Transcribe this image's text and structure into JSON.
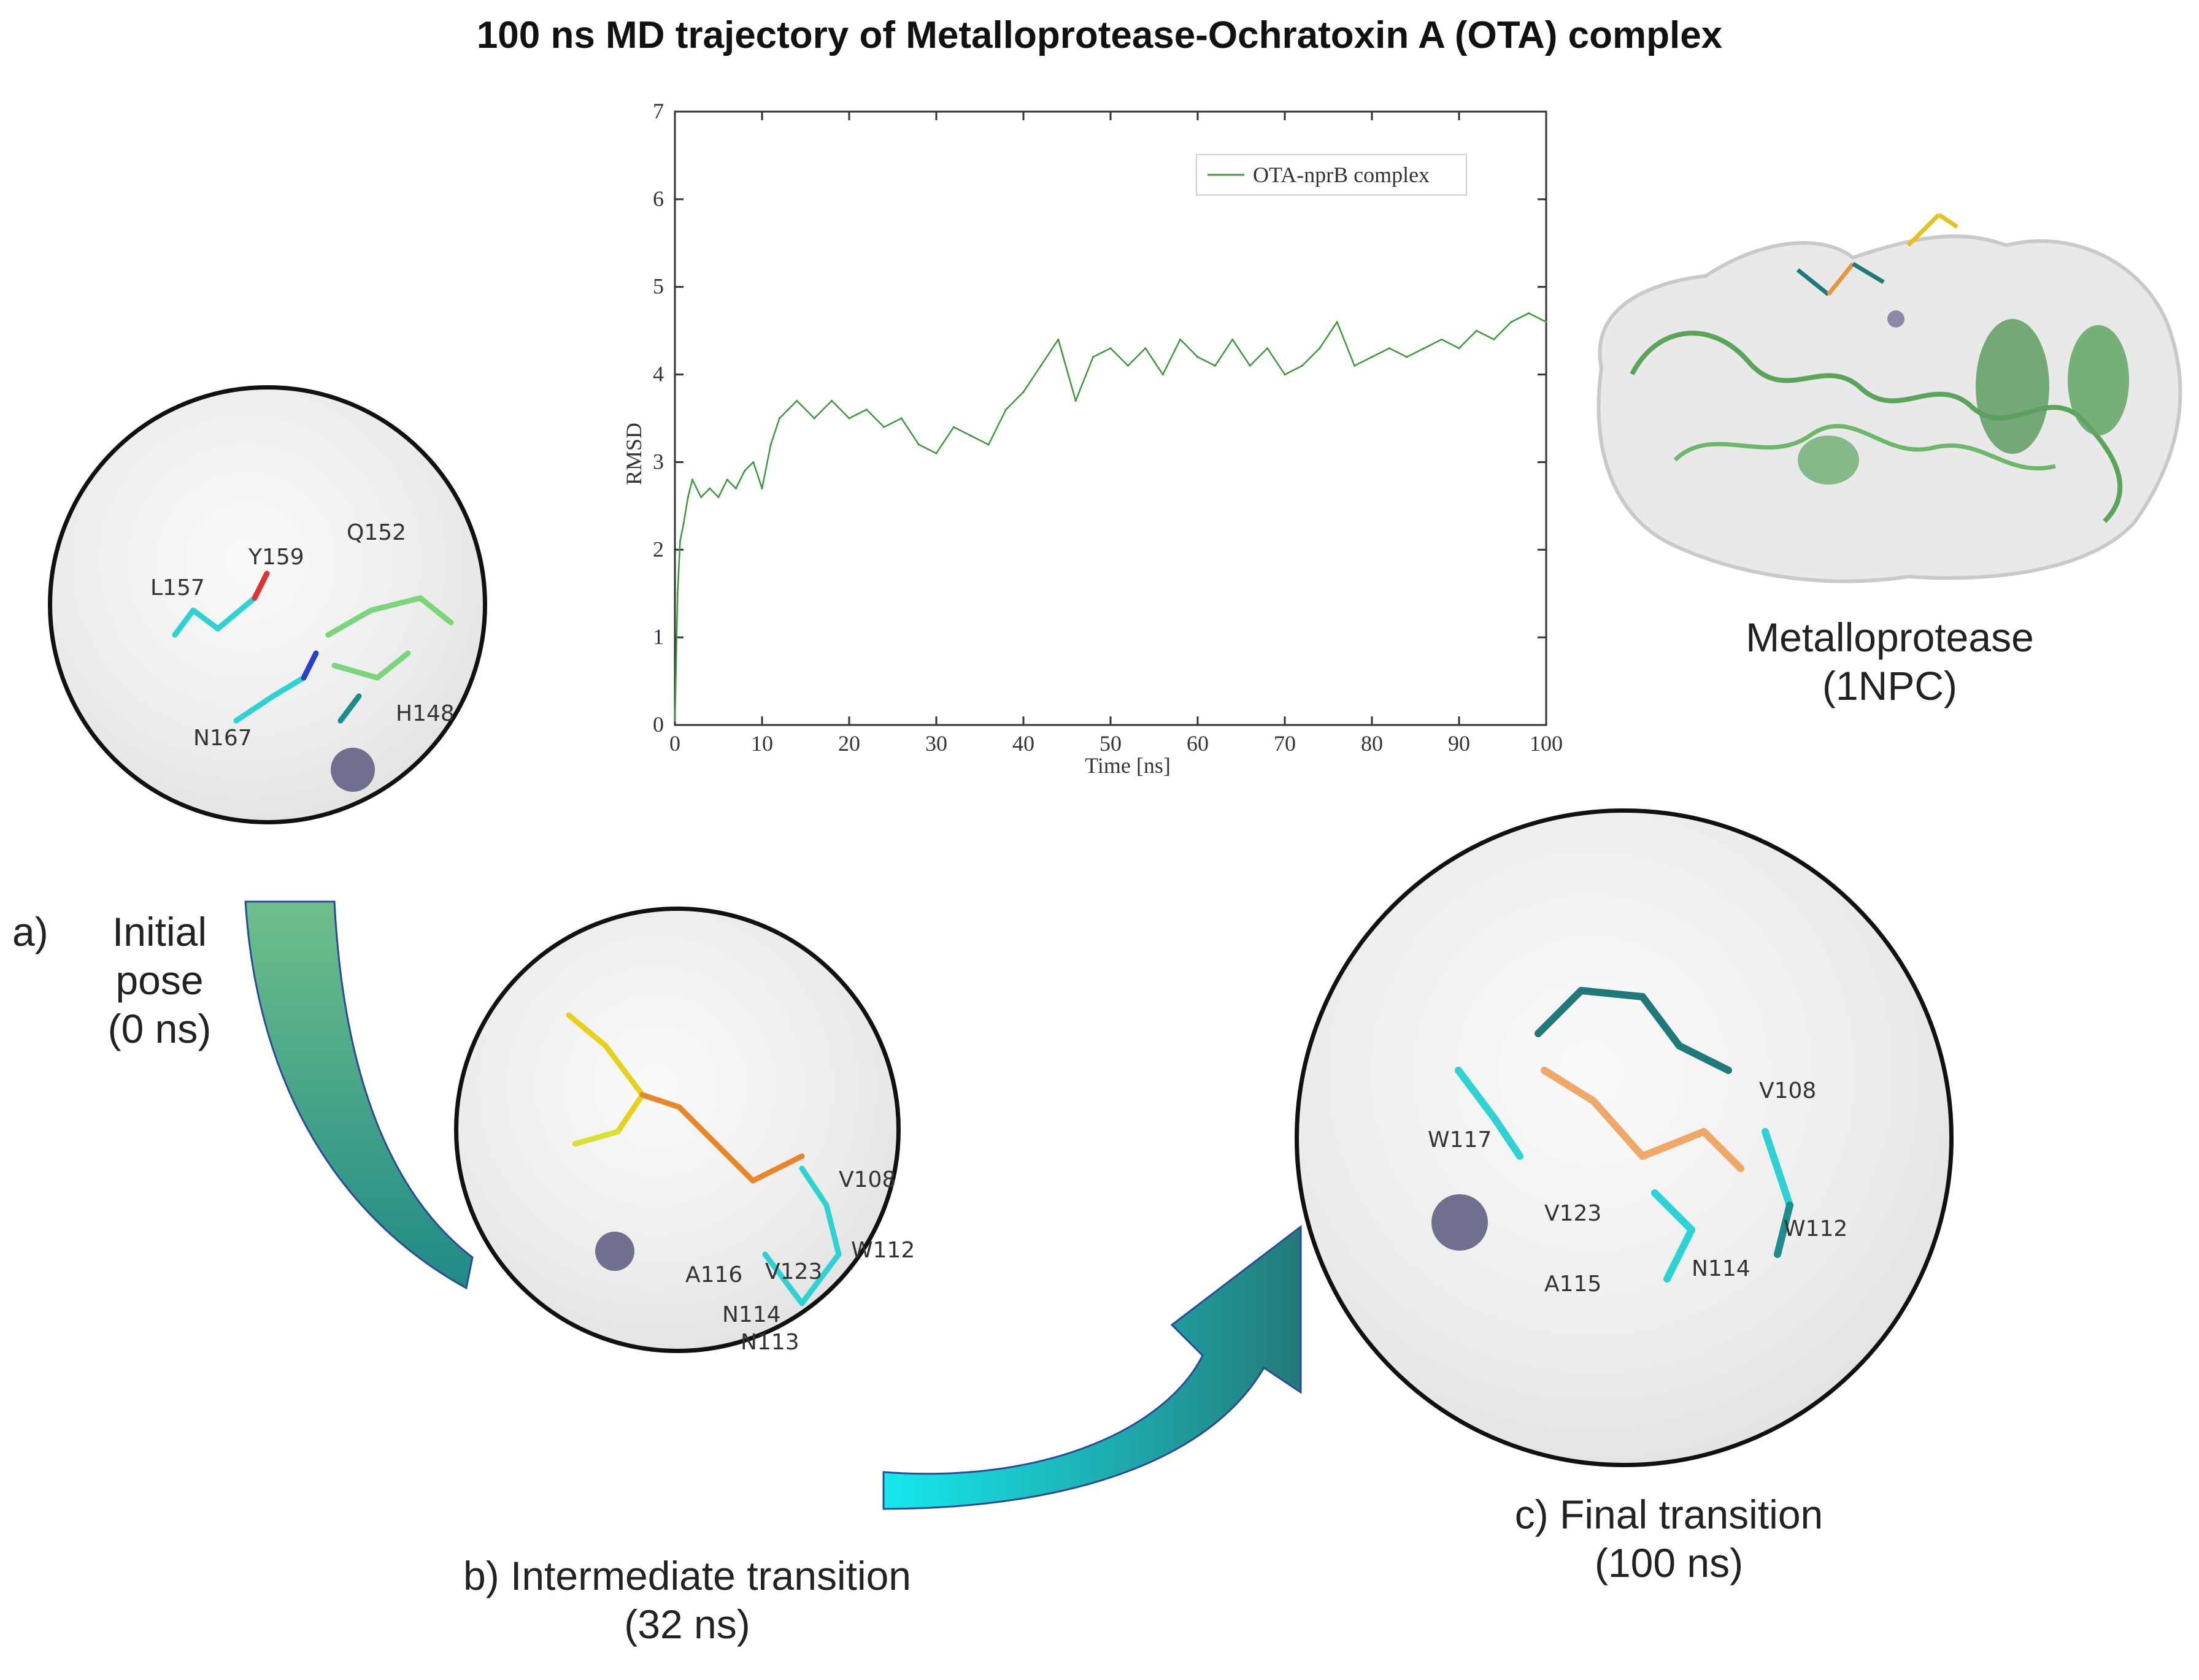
{
  "figure": {
    "title": "100 ns MD trajectory of Metalloprotease-Ochratoxin A (OTA) complex"
  },
  "chart_data": {
    "type": "line",
    "title": "",
    "xlabel": "Time [ns]",
    "ylabel": "RMSD",
    "xlim": [
      0,
      100
    ],
    "ylim": [
      0,
      7
    ],
    "xticks": [
      0,
      10,
      20,
      30,
      40,
      50,
      60,
      70,
      80,
      90,
      100
    ],
    "yticks": [
      0,
      1,
      2,
      3,
      4,
      5,
      6,
      7
    ],
    "grid": false,
    "legend_position": "top-right",
    "series": [
      {
        "name": "OTA-nprB complex",
        "color": "#3a9a3a",
        "x": [
          0,
          0.3,
          0.6,
          1,
          1.5,
          2,
          3,
          4,
          5,
          6,
          7,
          8,
          9,
          10,
          11,
          12,
          13,
          14,
          16,
          18,
          20,
          22,
          24,
          26,
          28,
          30,
          32,
          34,
          36,
          38,
          40,
          42,
          44,
          46,
          48,
          50,
          52,
          54,
          56,
          58,
          60,
          62,
          64,
          66,
          68,
          70,
          72,
          74,
          76,
          78,
          80,
          82,
          84,
          86,
          88,
          90,
          92,
          94,
          96,
          98,
          100
        ],
        "values": [
          0.05,
          1.5,
          2.1,
          2.3,
          2.6,
          2.8,
          2.6,
          2.7,
          2.6,
          2.8,
          2.7,
          2.9,
          3.0,
          2.7,
          3.2,
          3.5,
          3.6,
          3.7,
          3.5,
          3.7,
          3.5,
          3.6,
          3.4,
          3.5,
          3.2,
          3.1,
          3.4,
          3.3,
          3.2,
          3.6,
          3.8,
          4.1,
          4.4,
          3.7,
          4.2,
          4.3,
          4.1,
          4.3,
          4.0,
          4.4,
          4.2,
          4.1,
          4.4,
          4.1,
          4.3,
          4.0,
          4.1,
          4.3,
          4.6,
          4.1,
          4.2,
          4.3,
          4.2,
          4.3,
          4.4,
          4.3,
          4.5,
          4.4,
          4.6,
          4.7,
          4.6
        ]
      }
    ]
  },
  "protein": {
    "name": "Metalloprotease",
    "pdb": "(1NPC)"
  },
  "panels": {
    "a": {
      "label": "a)",
      "line1": "Initial",
      "line2": "pose",
      "line3": "(0 ns)",
      "residues": [
        "Y159",
        "Q152",
        "L157",
        "N167",
        "H148"
      ]
    },
    "b": {
      "line1": "b) Intermediate transition",
      "line2": "(32 ns)",
      "residues": [
        "V108",
        "W112",
        "A116",
        "V123",
        "N114",
        "N113"
      ]
    },
    "c": {
      "line1": "c) Final transition",
      "line2": "(100 ns)",
      "residues": [
        "V108",
        "W117",
        "V123",
        "W112",
        "N114",
        "A115"
      ]
    }
  }
}
